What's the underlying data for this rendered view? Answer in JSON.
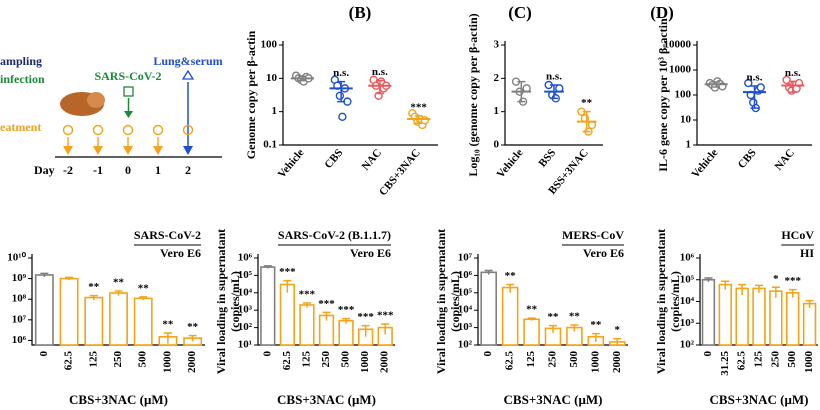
{
  "timeline": {
    "labels": [
      "ampling",
      "infection",
      "eatment"
    ],
    "virus": "SARS-CoV-2",
    "harvest": "Lung&serum",
    "day_label": "Day",
    "days": [
      "-2",
      "-1",
      "0",
      "1",
      "2"
    ]
  },
  "chart_data": [
    {
      "type": "dot",
      "title": "(B)",
      "ylabel": [
        "Genome copy per β-actin"
      ],
      "log": true,
      "categories": [
        "Vehicle",
        "CBS",
        "NAC",
        "CBS+3NAC"
      ],
      "colors": [
        "#808080",
        "#1f4fd1",
        "#e8595c",
        "#f5a31a"
      ],
      "values": [
        10,
        5,
        6,
        0.6
      ],
      "errors": [
        1.5,
        3,
        2.5,
        0.15
      ],
      "points": [
        [
          12,
          10,
          9,
          8,
          11,
          10
        ],
        [
          9,
          6,
          3,
          0.7,
          5,
          2
        ],
        [
          9,
          6,
          3,
          8,
          5,
          6
        ],
        [
          0.9,
          0.7,
          0.5,
          0.6,
          0.4,
          0.55
        ]
      ],
      "annotations": [
        null,
        "n.s.",
        "n.s.",
        "***"
      ],
      "ylim": [
        0.1,
        100
      ],
      "yticks": [
        0.1,
        1,
        10,
        100
      ]
    },
    {
      "type": "dot",
      "title": "(C)",
      "ylabel": [
        "Log₁₀ (genome copy per β-actin)"
      ],
      "log": false,
      "categories": [
        "Vehicle",
        "BSS",
        "BSS+3NAC"
      ],
      "colors": [
        "#808080",
        "#1f4fd1",
        "#f5a31a"
      ],
      "values": [
        1.6,
        1.6,
        0.7
      ],
      "errors": [
        0.3,
        0.2,
        0.3
      ],
      "points": [
        [
          1.9,
          1.6,
          1.3,
          1.7
        ],
        [
          1.8,
          1.5,
          1.4,
          1.7
        ],
        [
          1.0,
          0.8,
          0.4,
          0.6
        ]
      ],
      "annotations": [
        null,
        "n.s.",
        "**"
      ],
      "ylim": [
        0,
        3
      ],
      "yticks": [
        0,
        1,
        2,
        3
      ]
    },
    {
      "type": "dot",
      "title": "(D)",
      "ylabel": [
        "IL-6 gene copy per 10³ β-actin"
      ],
      "log": true,
      "categories": [
        "Vehicle",
        "CBS",
        "NAC"
      ],
      "colors": [
        "#808080",
        "#1f4fd1",
        "#e8595c"
      ],
      "values": [
        270,
        130,
        240
      ],
      "errors": [
        60,
        100,
        110
      ],
      "points": [
        [
          300,
          250,
          200,
          350,
          280,
          220
        ],
        [
          300,
          100,
          50,
          30,
          150,
          200
        ],
        [
          400,
          200,
          150,
          250,
          180,
          300
        ]
      ],
      "annotations": [
        null,
        "n.s.",
        "n.s."
      ],
      "ylim": [
        1,
        10000
      ],
      "yticks": [
        1,
        10,
        100,
        1000,
        10000
      ]
    },
    {
      "type": "bar",
      "subtitle": [
        "SARS-CoV-2",
        "Vero E6"
      ],
      "xlabel": "CBS+3NAC (μM)",
      "log": true,
      "categories": [
        "0",
        "62.5",
        "125",
        "250",
        "500",
        "1000",
        "2000"
      ],
      "colors": [
        "#808080",
        "#f5a31a",
        "#f5a31a",
        "#f5a31a",
        "#f5a31a",
        "#f5a31a",
        "#f5a31a"
      ],
      "values": [
        1500000000,
        1000000000,
        120000000,
        200000000,
        110000000,
        1500000,
        1300000
      ],
      "errors": [
        300000000,
        150000000,
        30000000,
        50000000,
        20000000,
        800000,
        400000
      ],
      "annotations": [
        null,
        null,
        "**",
        "**",
        "**",
        "**",
        "**"
      ],
      "ylim": [
        600000,
        10000000000
      ],
      "yticks": [
        {
          "value": 1000000,
          "label": "10⁶"
        },
        {
          "value": 10000000,
          "label": "10⁷"
        },
        {
          "value": 100000000,
          "label": "10⁸"
        },
        {
          "value": 1000000000,
          "label": "10⁹"
        },
        {
          "value": 10000000000,
          "label": "10¹⁰"
        }
      ]
    },
    {
      "type": "bar",
      "subtitle": [
        "SARS-CoV-2 (B.1.1.7)",
        "Vero E6"
      ],
      "ylabel": [
        "Viral loading in supernatant",
        "(copies/mL)"
      ],
      "xlabel": "CBS+3NAC (μM)",
      "log": true,
      "categories": [
        "0",
        "62.5",
        "125",
        "250",
        "500",
        "1000",
        "2000"
      ],
      "colors": [
        "#808080",
        "#f5a31a",
        "#f5a31a",
        "#f5a31a",
        "#f5a31a",
        "#f5a31a",
        "#f5a31a"
      ],
      "values": [
        300000,
        30000,
        2000,
        500,
        250,
        80,
        100
      ],
      "errors": [
        50000,
        20000,
        600,
        250,
        80,
        50,
        60
      ],
      "annotations": [
        null,
        "***",
        "***",
        "***",
        "***",
        "***",
        "***"
      ],
      "ylim": [
        10,
        1000000
      ],
      "yticks": [
        {
          "value": 10,
          "label": "10¹"
        },
        {
          "value": 100,
          "label": "10²"
        },
        {
          "value": 1000,
          "label": "10³"
        },
        {
          "value": 10000,
          "label": "10⁴"
        },
        {
          "value": 100000,
          "label": "10⁵"
        },
        {
          "value": 1000000,
          "label": "10⁶"
        }
      ]
    },
    {
      "type": "bar",
      "subtitle": [
        "MERS-CoV",
        "Vero E6"
      ],
      "ylabel": [
        "Viral loading in supernatant",
        "(copies/mL)"
      ],
      "xlabel": "CBS+3NAC (μM)",
      "log": true,
      "categories": [
        "0",
        "62.5",
        "125",
        "250",
        "500",
        "1000",
        "2000"
      ],
      "colors": [
        "#808080",
        "#f5a31a",
        "#f5a31a",
        "#f5a31a",
        "#f5a31a",
        "#f5a31a",
        "#f5a31a"
      ],
      "values": [
        1500000,
        200000,
        3000,
        900,
        1000,
        300,
        150
      ],
      "errors": [
        400000,
        100000,
        500,
        400,
        400,
        150,
        80
      ],
      "annotations": [
        null,
        "**",
        "**",
        "**",
        "**",
        "**",
        "*"
      ],
      "ylim": [
        100,
        10000000
      ],
      "yticks": [
        {
          "value": 100,
          "label": "10²"
        },
        {
          "value": 1000,
          "label": "10³"
        },
        {
          "value": 10000,
          "label": "10⁴"
        },
        {
          "value": 100000,
          "label": "10⁵"
        },
        {
          "value": 1000000,
          "label": "10⁶"
        },
        {
          "value": 10000000,
          "label": "10⁷"
        }
      ]
    },
    {
      "type": "bar",
      "subtitle": [
        "HCoV",
        "HI"
      ],
      "ylabel": [
        "Viral loading in supernatant",
        "(copies/mL)"
      ],
      "xlabel": "CBS+3NAC (μM)",
      "log": true,
      "categories": [
        "0",
        "31.25",
        "62.5",
        "125",
        "250",
        "500",
        "1000"
      ],
      "colors": [
        "#808080",
        "#f5a31a",
        "#f5a31a",
        "#f5a31a",
        "#f5a31a",
        "#f5a31a",
        "#f5a31a"
      ],
      "values": [
        100000,
        60000,
        40000,
        40000,
        30000,
        25000,
        8000
      ],
      "errors": [
        20000,
        25000,
        20000,
        15000,
        15000,
        10000,
        3000
      ],
      "annotations": [
        null,
        null,
        null,
        null,
        "*",
        "***",
        null
      ],
      "ylim": [
        100,
        1000000
      ],
      "yticks": [
        {
          "value": 100,
          "label": "10²"
        },
        {
          "value": 1000,
          "label": "10³"
        },
        {
          "value": 10000,
          "label": "10⁴"
        },
        {
          "value": 100000,
          "label": "10⁵"
        },
        {
          "value": 1000000,
          "label": "10⁶"
        }
      ]
    }
  ]
}
